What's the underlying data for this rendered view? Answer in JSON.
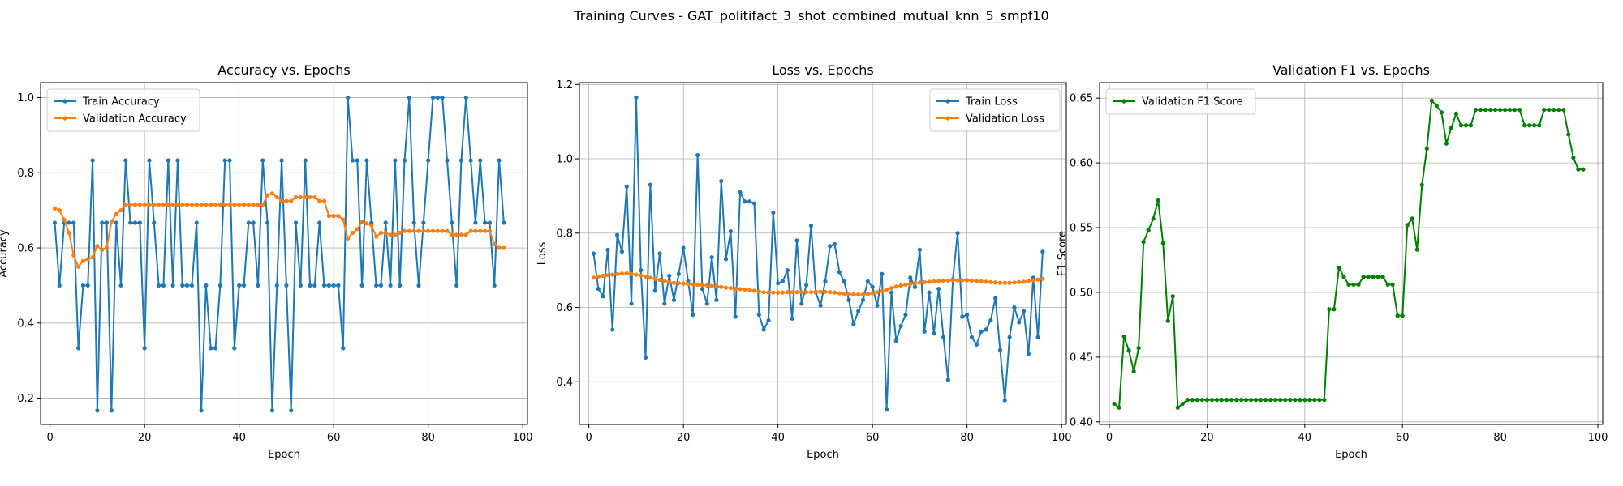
{
  "suptitle": "Training Curves - GAT_politifact_3_shot_combined_mutual_knn_5_smpf10",
  "colors": {
    "blue": "#1f77b4",
    "orange": "#ff7f0e",
    "green": "#008000"
  },
  "chart_data": [
    {
      "type": "line",
      "title": "Accuracy vs. Epochs",
      "xlabel": "Epoch",
      "ylabel": "Accuracy",
      "xlim": [
        -2,
        101
      ],
      "ylim": [
        0.13,
        1.04
      ],
      "xticks": [
        0,
        20,
        40,
        60,
        80,
        100
      ],
      "yticks": [
        0.2,
        0.4,
        0.6,
        0.8,
        1.0
      ],
      "ytick_labels": [
        "0.2",
        "0.4",
        "0.6",
        "0.8",
        "1.0"
      ],
      "grid": true,
      "legend": "upper left",
      "series": [
        {
          "name": "Train Accuracy",
          "color": "#1f77b4",
          "x_start": 1,
          "values": [
            0.667,
            0.5,
            0.667,
            0.667,
            0.667,
            0.333,
            0.5,
            0.5,
            0.833,
            0.167,
            0.667,
            0.667,
            0.167,
            0.667,
            0.5,
            0.833,
            0.667,
            0.667,
            0.667,
            0.333,
            0.833,
            0.667,
            0.5,
            0.5,
            0.833,
            0.5,
            0.833,
            0.5,
            0.5,
            0.5,
            0.667,
            0.167,
            0.5,
            0.333,
            0.333,
            0.5,
            0.833,
            0.833,
            0.333,
            0.5,
            0.5,
            0.667,
            0.667,
            0.5,
            0.833,
            0.667,
            0.167,
            0.5,
            0.833,
            0.5,
            0.167,
            0.667,
            0.5,
            0.833,
            0.5,
            0.5,
            0.667,
            0.5,
            0.5,
            0.5,
            0.5,
            0.333,
            1.0,
            0.833,
            0.833,
            0.5,
            0.833,
            0.667,
            0.5,
            0.5,
            0.667,
            0.5,
            0.833,
            0.5,
            0.833,
            1.0,
            0.667,
            0.5,
            0.667,
            0.833,
            1.0,
            1.0,
            1.0,
            0.833,
            0.667,
            0.5,
            0.833,
            1.0,
            0.833,
            0.667,
            0.833,
            0.667,
            0.667,
            0.5,
            0.833,
            0.667
          ]
        },
        {
          "name": "Validation Accuracy",
          "color": "#ff7f0e",
          "x_start": 1,
          "values": [
            0.705,
            0.7,
            0.675,
            0.64,
            0.58,
            0.55,
            0.565,
            0.57,
            0.575,
            0.605,
            0.595,
            0.6,
            0.67,
            0.69,
            0.7,
            0.715,
            0.715,
            0.715,
            0.715,
            0.715,
            0.715,
            0.715,
            0.715,
            0.715,
            0.715,
            0.715,
            0.715,
            0.715,
            0.715,
            0.715,
            0.715,
            0.715,
            0.715,
            0.715,
            0.715,
            0.715,
            0.715,
            0.715,
            0.715,
            0.715,
            0.715,
            0.715,
            0.715,
            0.715,
            0.715,
            0.74,
            0.745,
            0.735,
            0.725,
            0.725,
            0.725,
            0.735,
            0.735,
            0.735,
            0.735,
            0.735,
            0.725,
            0.725,
            0.685,
            0.685,
            0.685,
            0.675,
            0.625,
            0.64,
            0.65,
            0.67,
            0.665,
            0.66,
            0.63,
            0.64,
            0.64,
            0.635,
            0.635,
            0.64,
            0.645,
            0.645,
            0.645,
            0.645,
            0.645,
            0.645,
            0.645,
            0.645,
            0.645,
            0.645,
            0.635,
            0.635,
            0.635,
            0.635,
            0.645,
            0.645,
            0.645,
            0.645,
            0.645,
            0.61,
            0.6,
            0.6
          ]
        }
      ]
    },
    {
      "type": "line",
      "title": "Loss vs. Epochs",
      "xlabel": "Epoch",
      "ylabel": "Loss",
      "xlim": [
        -2,
        101
      ],
      "ylim": [
        0.285,
        1.205
      ],
      "xticks": [
        0,
        20,
        40,
        60,
        80,
        100
      ],
      "yticks": [
        0.4,
        0.6,
        0.8,
        1.0,
        1.2
      ],
      "ytick_labels": [
        "0.4",
        "0.6",
        "0.8",
        "1.0",
        "1.2"
      ],
      "grid": true,
      "legend": "upper right",
      "series": [
        {
          "name": "Train Loss",
          "color": "#1f77b4",
          "x_start": 1,
          "values": [
            0.745,
            0.65,
            0.63,
            0.755,
            0.54,
            0.795,
            0.75,
            0.925,
            0.61,
            1.165,
            0.7,
            0.465,
            0.93,
            0.645,
            0.745,
            0.61,
            0.685,
            0.62,
            0.69,
            0.76,
            0.67,
            0.58,
            1.01,
            0.65,
            0.61,
            0.735,
            0.62,
            0.94,
            0.73,
            0.805,
            0.575,
            0.91,
            0.885,
            0.885,
            0.88,
            0.58,
            0.54,
            0.565,
            0.855,
            0.665,
            0.67,
            0.7,
            0.57,
            0.78,
            0.61,
            0.66,
            0.82,
            0.64,
            0.605,
            0.67,
            0.765,
            0.77,
            0.695,
            0.67,
            0.62,
            0.555,
            0.59,
            0.62,
            0.67,
            0.655,
            0.605,
            0.69,
            0.325,
            0.64,
            0.51,
            0.55,
            0.58,
            0.68,
            0.655,
            0.755,
            0.535,
            0.64,
            0.53,
            0.65,
            0.52,
            0.405,
            0.675,
            0.8,
            0.575,
            0.58,
            0.52,
            0.5,
            0.535,
            0.54,
            0.565,
            0.625,
            0.485,
            0.35,
            0.52,
            0.6,
            0.56,
            0.59,
            0.475,
            0.68,
            0.52,
            0.75
          ]
        },
        {
          "name": "Validation Loss",
          "color": "#ff7f0e",
          "x_start": 1,
          "values": [
            0.68,
            0.683,
            0.685,
            0.687,
            0.688,
            0.69,
            0.691,
            0.692,
            0.69,
            0.688,
            0.686,
            0.683,
            0.68,
            0.677,
            0.674,
            0.671,
            0.668,
            0.666,
            0.665,
            0.664,
            0.663,
            0.662,
            0.661,
            0.66,
            0.659,
            0.658,
            0.657,
            0.655,
            0.653,
            0.652,
            0.65,
            0.649,
            0.648,
            0.647,
            0.645,
            0.643,
            0.641,
            0.64,
            0.64,
            0.64,
            0.64,
            0.641,
            0.641,
            0.641,
            0.641,
            0.641,
            0.641,
            0.642,
            0.642,
            0.642,
            0.641,
            0.64,
            0.638,
            0.637,
            0.636,
            0.635,
            0.635,
            0.635,
            0.636,
            0.638,
            0.641,
            0.644,
            0.648,
            0.652,
            0.656,
            0.659,
            0.661,
            0.663,
            0.665,
            0.667,
            0.668,
            0.669,
            0.67,
            0.671,
            0.672,
            0.672,
            0.673,
            0.673,
            0.673,
            0.673,
            0.672,
            0.671,
            0.67,
            0.669,
            0.668,
            0.667,
            0.666,
            0.666,
            0.666,
            0.667,
            0.668,
            0.669,
            0.671,
            0.673,
            0.675,
            0.677
          ]
        }
      ]
    },
    {
      "type": "line",
      "title": "Validation F1 vs. Epochs",
      "xlabel": "Epoch",
      "ylabel": "F1 Score",
      "xlim": [
        -2,
        101
      ],
      "ylim": [
        0.398,
        0.662
      ],
      "xticks": [
        0,
        20,
        40,
        60,
        80,
        100
      ],
      "yticks": [
        0.4,
        0.45,
        0.5,
        0.55,
        0.6,
        0.65
      ],
      "ytick_labels": [
        "0.40",
        "0.45",
        "0.50",
        "0.55",
        "0.60",
        "0.65"
      ],
      "grid": true,
      "legend": "upper left",
      "series": [
        {
          "name": "Validation F1 Score",
          "color": "#008000",
          "x_start": 1,
          "values": [
            0.414,
            0.411,
            0.466,
            0.455,
            0.439,
            0.457,
            0.539,
            0.548,
            0.557,
            0.571,
            0.538,
            0.478,
            0.497,
            0.411,
            0.414,
            0.417,
            0.417,
            0.417,
            0.417,
            0.417,
            0.417,
            0.417,
            0.417,
            0.417,
            0.417,
            0.417,
            0.417,
            0.417,
            0.417,
            0.417,
            0.417,
            0.417,
            0.417,
            0.417,
            0.417,
            0.417,
            0.417,
            0.417,
            0.417,
            0.417,
            0.417,
            0.417,
            0.417,
            0.417,
            0.487,
            0.487,
            0.519,
            0.512,
            0.506,
            0.506,
            0.506,
            0.512,
            0.512,
            0.512,
            0.512,
            0.512,
            0.506,
            0.506,
            0.482,
            0.482,
            0.552,
            0.557,
            0.533,
            0.583,
            0.611,
            0.648,
            0.644,
            0.639,
            0.615,
            0.627,
            0.638,
            0.629,
            0.629,
            0.629,
            0.641,
            0.641,
            0.641,
            0.641,
            0.641,
            0.641,
            0.641,
            0.641,
            0.641,
            0.641,
            0.629,
            0.629,
            0.629,
            0.629,
            0.641,
            0.641,
            0.641,
            0.641,
            0.641,
            0.622,
            0.604,
            0.595,
            0.595
          ]
        }
      ]
    }
  ]
}
